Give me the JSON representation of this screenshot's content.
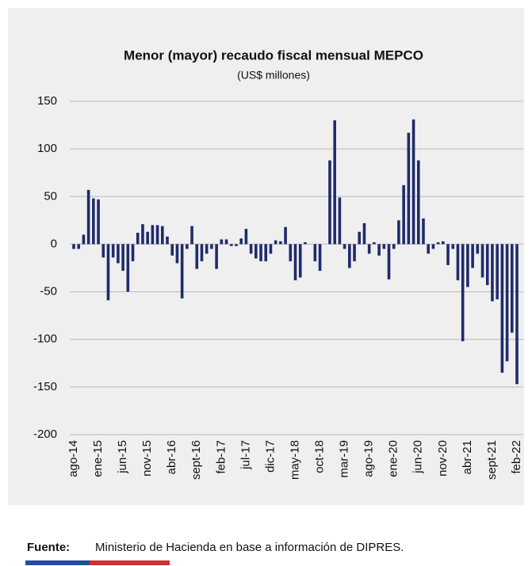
{
  "chart_data": {
    "type": "bar",
    "title": "Menor (mayor) recaudo fiscal mensual MEPCO",
    "subtitle": "(US$ millones)",
    "categories": [
      "ago-14",
      null,
      null,
      null,
      null,
      "ene-15",
      null,
      null,
      null,
      null,
      "jun-15",
      null,
      null,
      null,
      null,
      "nov-15",
      null,
      null,
      null,
      null,
      "abr-16",
      null,
      null,
      null,
      null,
      "sept-16",
      null,
      null,
      null,
      null,
      "feb-17",
      null,
      null,
      null,
      null,
      "jul-17",
      null,
      null,
      null,
      null,
      "dic-17",
      null,
      null,
      null,
      null,
      "may-18",
      null,
      null,
      null,
      null,
      "oct-18",
      null,
      null,
      null,
      null,
      "mar-19",
      null,
      null,
      null,
      null,
      "ago-19",
      null,
      null,
      null,
      null,
      "ene-20",
      null,
      null,
      null,
      null,
      "jun-20",
      null,
      null,
      null,
      null,
      "nov-20",
      null,
      null,
      null,
      null,
      "abr-21",
      null,
      null,
      null,
      null,
      "sept-21",
      null,
      null,
      null,
      null,
      "feb-22"
    ],
    "values": [
      -5,
      -5,
      10,
      57,
      48,
      47,
      -14,
      -59,
      -14,
      -20,
      -28,
      -50,
      -18,
      12,
      21,
      13,
      20,
      20,
      19,
      8,
      -12,
      -20,
      -57,
      -5,
      19,
      -26,
      -18,
      -10,
      -5,
      -26,
      5,
      5,
      -2,
      -2,
      6,
      16,
      -10,
      -15,
      -18,
      -18,
      -10,
      4,
      3,
      18,
      -18,
      -38,
      -35,
      2,
      0,
      -18,
      -28,
      0,
      88,
      130,
      49,
      -5,
      -25,
      -18,
      13,
      22,
      -10,
      2,
      -12,
      -5,
      -37,
      -5,
      25,
      62,
      117,
      131,
      88,
      27,
      -10,
      -5,
      2,
      3,
      -22,
      -5,
      -38,
      -102,
      -45,
      -25,
      -10,
      -35,
      -43,
      -60,
      -58,
      -135,
      -123,
      -93,
      -147
    ],
    "color": "#1f2b6b",
    "ylim": [
      -200,
      150
    ],
    "yticks": [
      -200,
      -150,
      -100,
      -50,
      0,
      50,
      100,
      150
    ],
    "grid": true
  },
  "footer": {
    "label": "Fuente:",
    "text": "Ministerio de Hacienda en base a información de DIPRES."
  }
}
